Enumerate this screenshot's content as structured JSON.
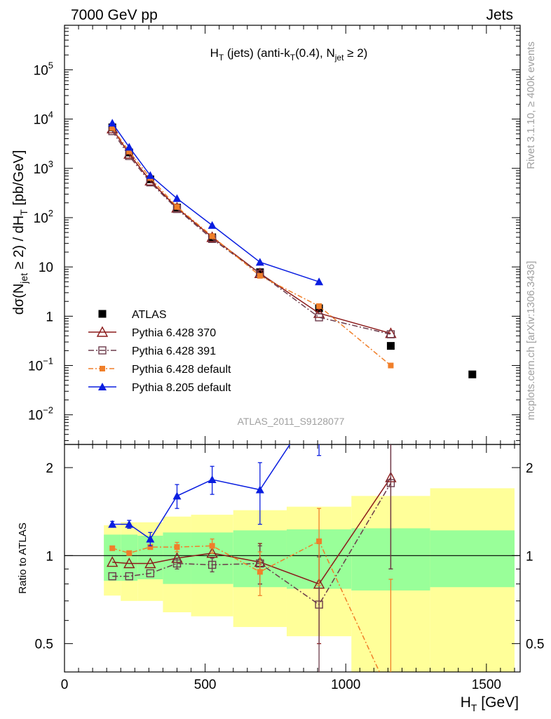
{
  "header": {
    "left": "7000 GeV pp",
    "right": "Jets"
  },
  "side": {
    "rivet": "Rivet 3.1.10, ≥ 400k events",
    "mcplots": "mcplots.cern.ch [arXiv:1306.3436]"
  },
  "colors": {
    "atlas": "#000000",
    "p370": "#8b1a1a",
    "p391": "#6b3a4a",
    "p6def": "#f07f2a",
    "p8def": "#0a1ee0",
    "band_outer": "#ffff99",
    "band_inner": "#99ff99"
  },
  "chart_data": {
    "type": "line",
    "title": "H_T (jets) (anti-k_T(0.4), N_jet ≥ 2)",
    "analysis_label": "ATLAS_2011_S9128077",
    "xlabel": "H_T [GeV]",
    "ylabel": "dσ(N_jet ≥ 2) / dH_T [pb/GeV]",
    "ratio_ylabel": "Ratio to ATLAS",
    "xlim": [
      0,
      1620
    ],
    "ylim_log": [
      0.0025,
      800000
    ],
    "ratio_ylim": [
      0.4,
      2.4
    ],
    "x_ticks": [
      {
        "v": 0,
        "label": "0"
      },
      {
        "v": 500,
        "label": "500"
      },
      {
        "v": 1000,
        "label": "1000"
      },
      {
        "v": 1500,
        "label": "1500"
      }
    ],
    "y_ticks": [
      {
        "v": 0.01,
        "base": "10",
        "exp": "−2"
      },
      {
        "v": 0.1,
        "base": "10",
        "exp": "−1"
      },
      {
        "v": 1,
        "base": "1",
        "exp": ""
      },
      {
        "v": 10,
        "base": "10",
        "exp": ""
      },
      {
        "v": 100,
        "base": "10",
        "exp": "2"
      },
      {
        "v": 1000,
        "base": "10",
        "exp": "3"
      },
      {
        "v": 10000,
        "base": "10",
        "exp": "4"
      },
      {
        "v": 100000,
        "base": "10",
        "exp": "5"
      }
    ],
    "ratio_ticks": [
      {
        "v": 0.5,
        "label": "0.5"
      },
      {
        "v": 1,
        "label": "1"
      },
      {
        "v": 2,
        "label": "2"
      }
    ],
    "legend": [
      "ATLAS",
      "Pythia 6.428 370",
      "Pythia 6.428 391",
      "Pythia 6.428 default",
      "Pythia 8.205 default"
    ],
    "atlas": {
      "name": "ATLAS",
      "x": [
        170,
        230,
        305,
        400,
        525,
        695,
        905,
        1160,
        1450
      ],
      "xlo": [
        140,
        200,
        260,
        350,
        450,
        600,
        790,
        1020,
        1300
      ],
      "xhi": [
        200,
        260,
        350,
        450,
        600,
        790,
        1020,
        1300,
        1600
      ],
      "y": [
        6800,
        2100,
        600,
        160,
        40,
        7.8,
        1.45,
        0.25,
        0.066
      ]
    },
    "ratio_band": {
      "inner": [
        0.18,
        0.18,
        0.17,
        0.2,
        0.2,
        0.22,
        0.23,
        0.24,
        0.22
      ],
      "outer": [
        0.27,
        0.3,
        0.3,
        0.36,
        0.38,
        0.43,
        0.47,
        0.6,
        0.7
      ]
    },
    "series": [
      {
        "name": "Pythia 6.428 370",
        "color": "#8b1a1a",
        "marker": "open-triangle",
        "dash": "",
        "x": [
          170,
          230,
          305,
          400,
          525,
          695,
          905,
          1160
        ],
        "y": [
          6400,
          1960,
          560,
          158,
          40,
          7.4,
          1.15,
          0.45
        ],
        "ratio": [
          0.95,
          0.94,
          0.94,
          0.98,
          1.02,
          0.95,
          0.8,
          1.85
        ],
        "ratio_err": [
          0,
          0,
          0,
          0,
          0,
          0.15,
          0.3,
          0.95
        ]
      },
      {
        "name": "Pythia 6.428 391",
        "color": "#6b3a4a",
        "marker": "open-square",
        "dash": "8,3,2,3",
        "x": [
          170,
          230,
          305,
          400,
          525,
          695,
          905,
          1160
        ],
        "y": [
          5700,
          1780,
          520,
          150,
          37,
          7.3,
          0.95,
          0.43
        ],
        "ratio": [
          0.85,
          0.85,
          0.87,
          0.94,
          0.93,
          0.94,
          0.68,
          1.77
        ],
        "ratio_err": [
          0,
          0,
          0,
          0.04,
          0.05,
          0.14,
          0.31,
          0.87
        ]
      },
      {
        "name": "Pythia 6.428 default",
        "color": "#f07f2a",
        "marker": "filled-square",
        "dash": "7,3,2,3",
        "x": [
          170,
          230,
          305,
          400,
          525,
          695,
          905,
          1160
        ],
        "y": [
          6600,
          2200,
          640,
          165,
          42,
          6.6,
          1.6,
          0.1
        ],
        "ratio": [
          1.06,
          1.02,
          1.07,
          1.07,
          1.08,
          0.88,
          1.12,
          0.33
        ],
        "ratio_err": [
          0,
          0,
          0.02,
          0.04,
          0.06,
          0.15,
          0.33,
          0.5
        ]
      },
      {
        "name": "Pythia 8.205 default",
        "color": "#0a1ee0",
        "marker": "filled-triangle",
        "dash": "",
        "x": [
          170,
          230,
          305,
          400,
          525,
          695,
          905
        ],
        "y": [
          8300,
          2700,
          720,
          245,
          70,
          12.5,
          5
        ],
        "ratio": [
          1.28,
          1.28,
          1.14,
          1.6,
          1.82,
          1.68,
          3.4
        ],
        "ratio_err": [
          0.03,
          0.04,
          0.06,
          0.15,
          0.2,
          0.4,
          1.2
        ]
      }
    ]
  }
}
